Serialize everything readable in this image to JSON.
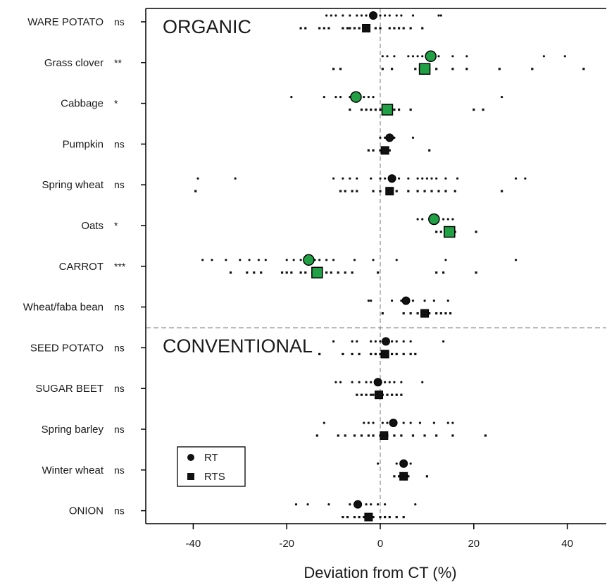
{
  "chart_data": {
    "type": "scatter",
    "xlabel": "Deviation from CT (%)",
    "xlim": [
      -50,
      48
    ],
    "xticks": [
      -40,
      -20,
      0,
      20,
      40
    ],
    "panels": [
      "ORGANIC",
      "CONVENTIONAL"
    ],
    "legend": {
      "position": "bottom-left",
      "entries": [
        {
          "name": "RT",
          "shape": "circle"
        },
        {
          "name": "RTS",
          "shape": "square"
        }
      ]
    },
    "colors": {
      "significant": "#22a046",
      "nonsignificant": "#111111",
      "guides": "#777777"
    },
    "crops": [
      {
        "name": "WARE POTATO",
        "panel": "ORGANIC",
        "sig": "ns",
        "RT": {
          "mean": -1.5,
          "points": [
            -11.5,
            -10.5,
            -9.5,
            -8,
            -6.5,
            -5,
            -4,
            -3,
            -2,
            -1,
            0,
            1,
            2,
            3.5,
            4.5,
            7,
            12.5,
            13
          ]
        },
        "RTS": {
          "mean": -3,
          "points": [
            -17,
            -16,
            -13,
            -12,
            -11,
            -8,
            -7,
            -6.5,
            -5.5,
            -4.5,
            -3.5,
            -2.5,
            -1,
            0,
            2,
            3,
            4,
            5,
            6.5,
            9
          ]
        }
      },
      {
        "name": "Grass clover",
        "panel": "ORGANIC",
        "sig": "**",
        "RT": {
          "mean": 10.8,
          "points": [
            0.5,
            1.5,
            3,
            6,
            7,
            8,
            9,
            10,
            11,
            12.5,
            15.5,
            18.5,
            35,
            39.5
          ]
        },
        "RTS": {
          "mean": 9.5,
          "points": [
            -10,
            -8.5,
            0.5,
            2.5,
            7.5,
            8.5,
            9.5,
            10.5,
            12,
            15.5,
            18.5,
            25.5,
            32.5,
            43.5
          ]
        }
      },
      {
        "name": "Cabbage",
        "panel": "ORGANIC",
        "sig": "*",
        "RT": {
          "mean": -5.2,
          "points": [
            -19,
            -12,
            -9.5,
            -8.5,
            -6.5,
            -5,
            -3.5,
            -2.5,
            -1.5,
            26
          ]
        },
        "RTS": {
          "mean": 1.5,
          "points": [
            -6.5,
            -4,
            -3,
            -2,
            -1,
            0,
            1,
            2,
            3,
            4,
            6.5,
            20,
            22
          ]
        }
      },
      {
        "name": "Pumpkin",
        "panel": "ORGANIC",
        "sig": "ns",
        "RT": {
          "mean": 2,
          "points": [
            0,
            1,
            2,
            3,
            7
          ]
        },
        "RTS": {
          "mean": 1,
          "points": [
            -2.5,
            -1.5,
            0,
            1,
            2,
            10.5
          ]
        }
      },
      {
        "name": "Spring wheat",
        "panel": "ORGANIC",
        "sig": "ns",
        "RT": {
          "mean": 2.5,
          "points": [
            -39,
            -31,
            -10,
            -8,
            -6.5,
            -5,
            -2,
            0,
            1,
            2.5,
            4,
            6,
            8,
            9,
            10,
            11,
            12,
            14,
            16.5,
            29,
            31
          ]
        },
        "RTS": {
          "mean": 2,
          "points": [
            -39.5,
            -8.5,
            -7.5,
            -6,
            -5,
            -1.5,
            0,
            2,
            3.5,
            6,
            8,
            9.5,
            11,
            12.5,
            14,
            16,
            26
          ]
        }
      },
      {
        "name": "Oats",
        "panel": "ORGANIC",
        "sig": "*",
        "RT": {
          "mean": 11.5,
          "points": [
            8,
            9,
            10.5,
            12,
            13.5,
            14.5,
            15.5
          ]
        },
        "RTS": {
          "mean": 14.8,
          "points": [
            12,
            13,
            14,
            16,
            20.5
          ]
        }
      },
      {
        "name": "CARROT",
        "panel": "ORGANIC",
        "sig": "***",
        "RT": {
          "mean": -15.3,
          "points": [
            -38,
            -36,
            -33,
            -30,
            -28,
            -26,
            -24.5,
            -20,
            -18.5,
            -17,
            -16,
            -14,
            -13,
            -11.5,
            -10,
            -5.5,
            -1.5,
            3.5,
            14,
            29
          ]
        },
        "RTS": {
          "mean": -13.5,
          "points": [
            -32,
            -28.5,
            -27,
            -25.5,
            -21,
            -20,
            -19,
            -17,
            -16,
            -14.5,
            -12.5,
            -11.5,
            -10.5,
            -9,
            -7.5,
            -6,
            -0.5,
            12,
            13.5,
            20.5
          ]
        }
      },
      {
        "name": "Wheat/faba bean",
        "panel": "ORGANIC",
        "sig": "ns",
        "RT": {
          "mean": 5.5,
          "points": [
            -2.5,
            -2,
            2.5,
            4.5,
            7,
            9.5,
            11.5,
            14.5
          ]
        },
        "RTS": {
          "mean": 9.5,
          "points": [
            0.5,
            5,
            6.5,
            8,
            9,
            10.5,
            12,
            13,
            14,
            15
          ]
        }
      },
      {
        "name": "SEED POTATO",
        "panel": "CONVENTIONAL",
        "sig": "ns",
        "RT": {
          "mean": 1.2,
          "points": [
            -10,
            -6,
            -5,
            -2,
            -1,
            0,
            1.5,
            2.5,
            3.5,
            5,
            6.5,
            13.5
          ]
        },
        "RTS": {
          "mean": 1,
          "points": [
            -13,
            -8,
            -6,
            -4.5,
            -2,
            -1,
            0,
            1,
            2.5,
            3.5,
            5,
            6.5,
            7.5
          ]
        }
      },
      {
        "name": "SUGAR BEET",
        "panel": "CONVENTIONAL",
        "sig": "ns",
        "RT": {
          "mean": -0.5,
          "points": [
            -9.5,
            -8.5,
            -6,
            -4.5,
            -3,
            -2,
            -1,
            0,
            1,
            2,
            3,
            4.5,
            9
          ]
        },
        "RTS": {
          "mean": -0.3,
          "points": [
            -5,
            -4,
            -3,
            -2,
            -1.5,
            -0.5,
            0.5,
            1.5,
            2.5,
            3.5,
            4.5
          ]
        }
      },
      {
        "name": "Spring barley",
        "panel": "CONVENTIONAL",
        "sig": "ns",
        "RT": {
          "mean": 2.8,
          "points": [
            -12,
            -3.5,
            -2.5,
            -1.5,
            0.5,
            1.5,
            3,
            5,
            6.5,
            8.5,
            11.5,
            14.5,
            15.5
          ]
        },
        "RTS": {
          "mean": 0.8,
          "points": [
            -13.5,
            -9,
            -7.5,
            -5.5,
            -4,
            -2.5,
            -1.5,
            0,
            1.5,
            3,
            4.5,
            7,
            9.5,
            12,
            15.5,
            22.5
          ]
        }
      },
      {
        "name": "Winter wheat",
        "panel": "CONVENTIONAL",
        "sig": "ns",
        "RT": {
          "mean": 5,
          "points": [
            -0.5,
            3.5,
            4.5,
            5.5,
            6.5
          ]
        },
        "RTS": {
          "mean": 5,
          "points": [
            3,
            4,
            4.5,
            5.5,
            6,
            10
          ]
        }
      },
      {
        "name": "ONION",
        "panel": "CONVENTIONAL",
        "sig": "ns",
        "RT": {
          "mean": -4.8,
          "points": [
            -18,
            -15.5,
            -11,
            -6.5,
            -5.5,
            -4.5,
            -3,
            -2,
            -0.5,
            1,
            7.5
          ]
        },
        "RTS": {
          "mean": -2.5,
          "points": [
            -8,
            -7,
            -5.5,
            -4.5,
            -3.5,
            -2.5,
            -1.5,
            0,
            1,
            2,
            3.5,
            5
          ]
        }
      }
    ]
  }
}
